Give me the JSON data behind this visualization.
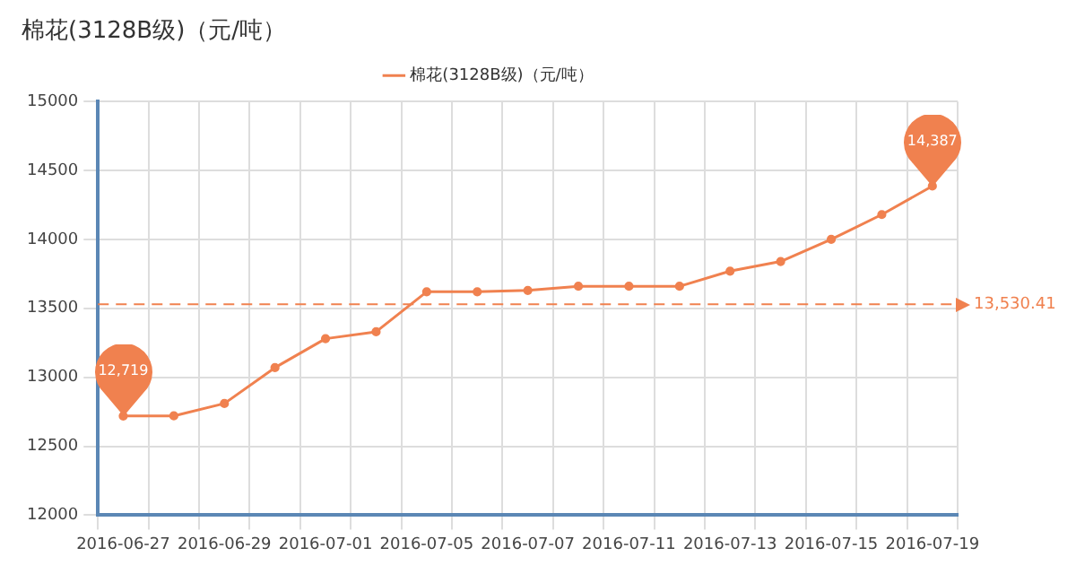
{
  "chart_data": {
    "type": "line",
    "title": "棉花(3128B级)（元/吨）",
    "categories": [
      "2016-06-27",
      null,
      "2016-06-29",
      null,
      "2016-07-01",
      null,
      "2016-07-05",
      null,
      "2016-07-07",
      null,
      "2016-07-11",
      null,
      "2016-07-13",
      null,
      "2016-07-15",
      null,
      "2016-07-19"
    ],
    "series": [
      {
        "name": "棉花(3128B级)（元/吨）",
        "color": "#f0814f",
        "values": [
          12719,
          12720,
          12810,
          13070,
          13280,
          13330,
          13620,
          13620,
          13630,
          13660,
          13660,
          13660,
          13770,
          13840,
          14000,
          14180,
          14387
        ]
      }
    ],
    "ylim": [
      12000,
      15000
    ],
    "yticks": [
      12000,
      12500,
      13000,
      13500,
      14000,
      14500,
      15000
    ],
    "ref_lines": [
      {
        "axis": "y",
        "value": 13530.41,
        "label": "13,530.41",
        "color": "#f0814f",
        "line_style": "dashed"
      }
    ],
    "annotations": [
      {
        "text": "12,719",
        "x": "2016-06-27",
        "y": 12719
      },
      {
        "text": "14,387",
        "x": "2016-07-19",
        "y": 14387
      }
    ],
    "grid": true,
    "legend": "top",
    "marker": "circle",
    "line_style": "solid"
  }
}
